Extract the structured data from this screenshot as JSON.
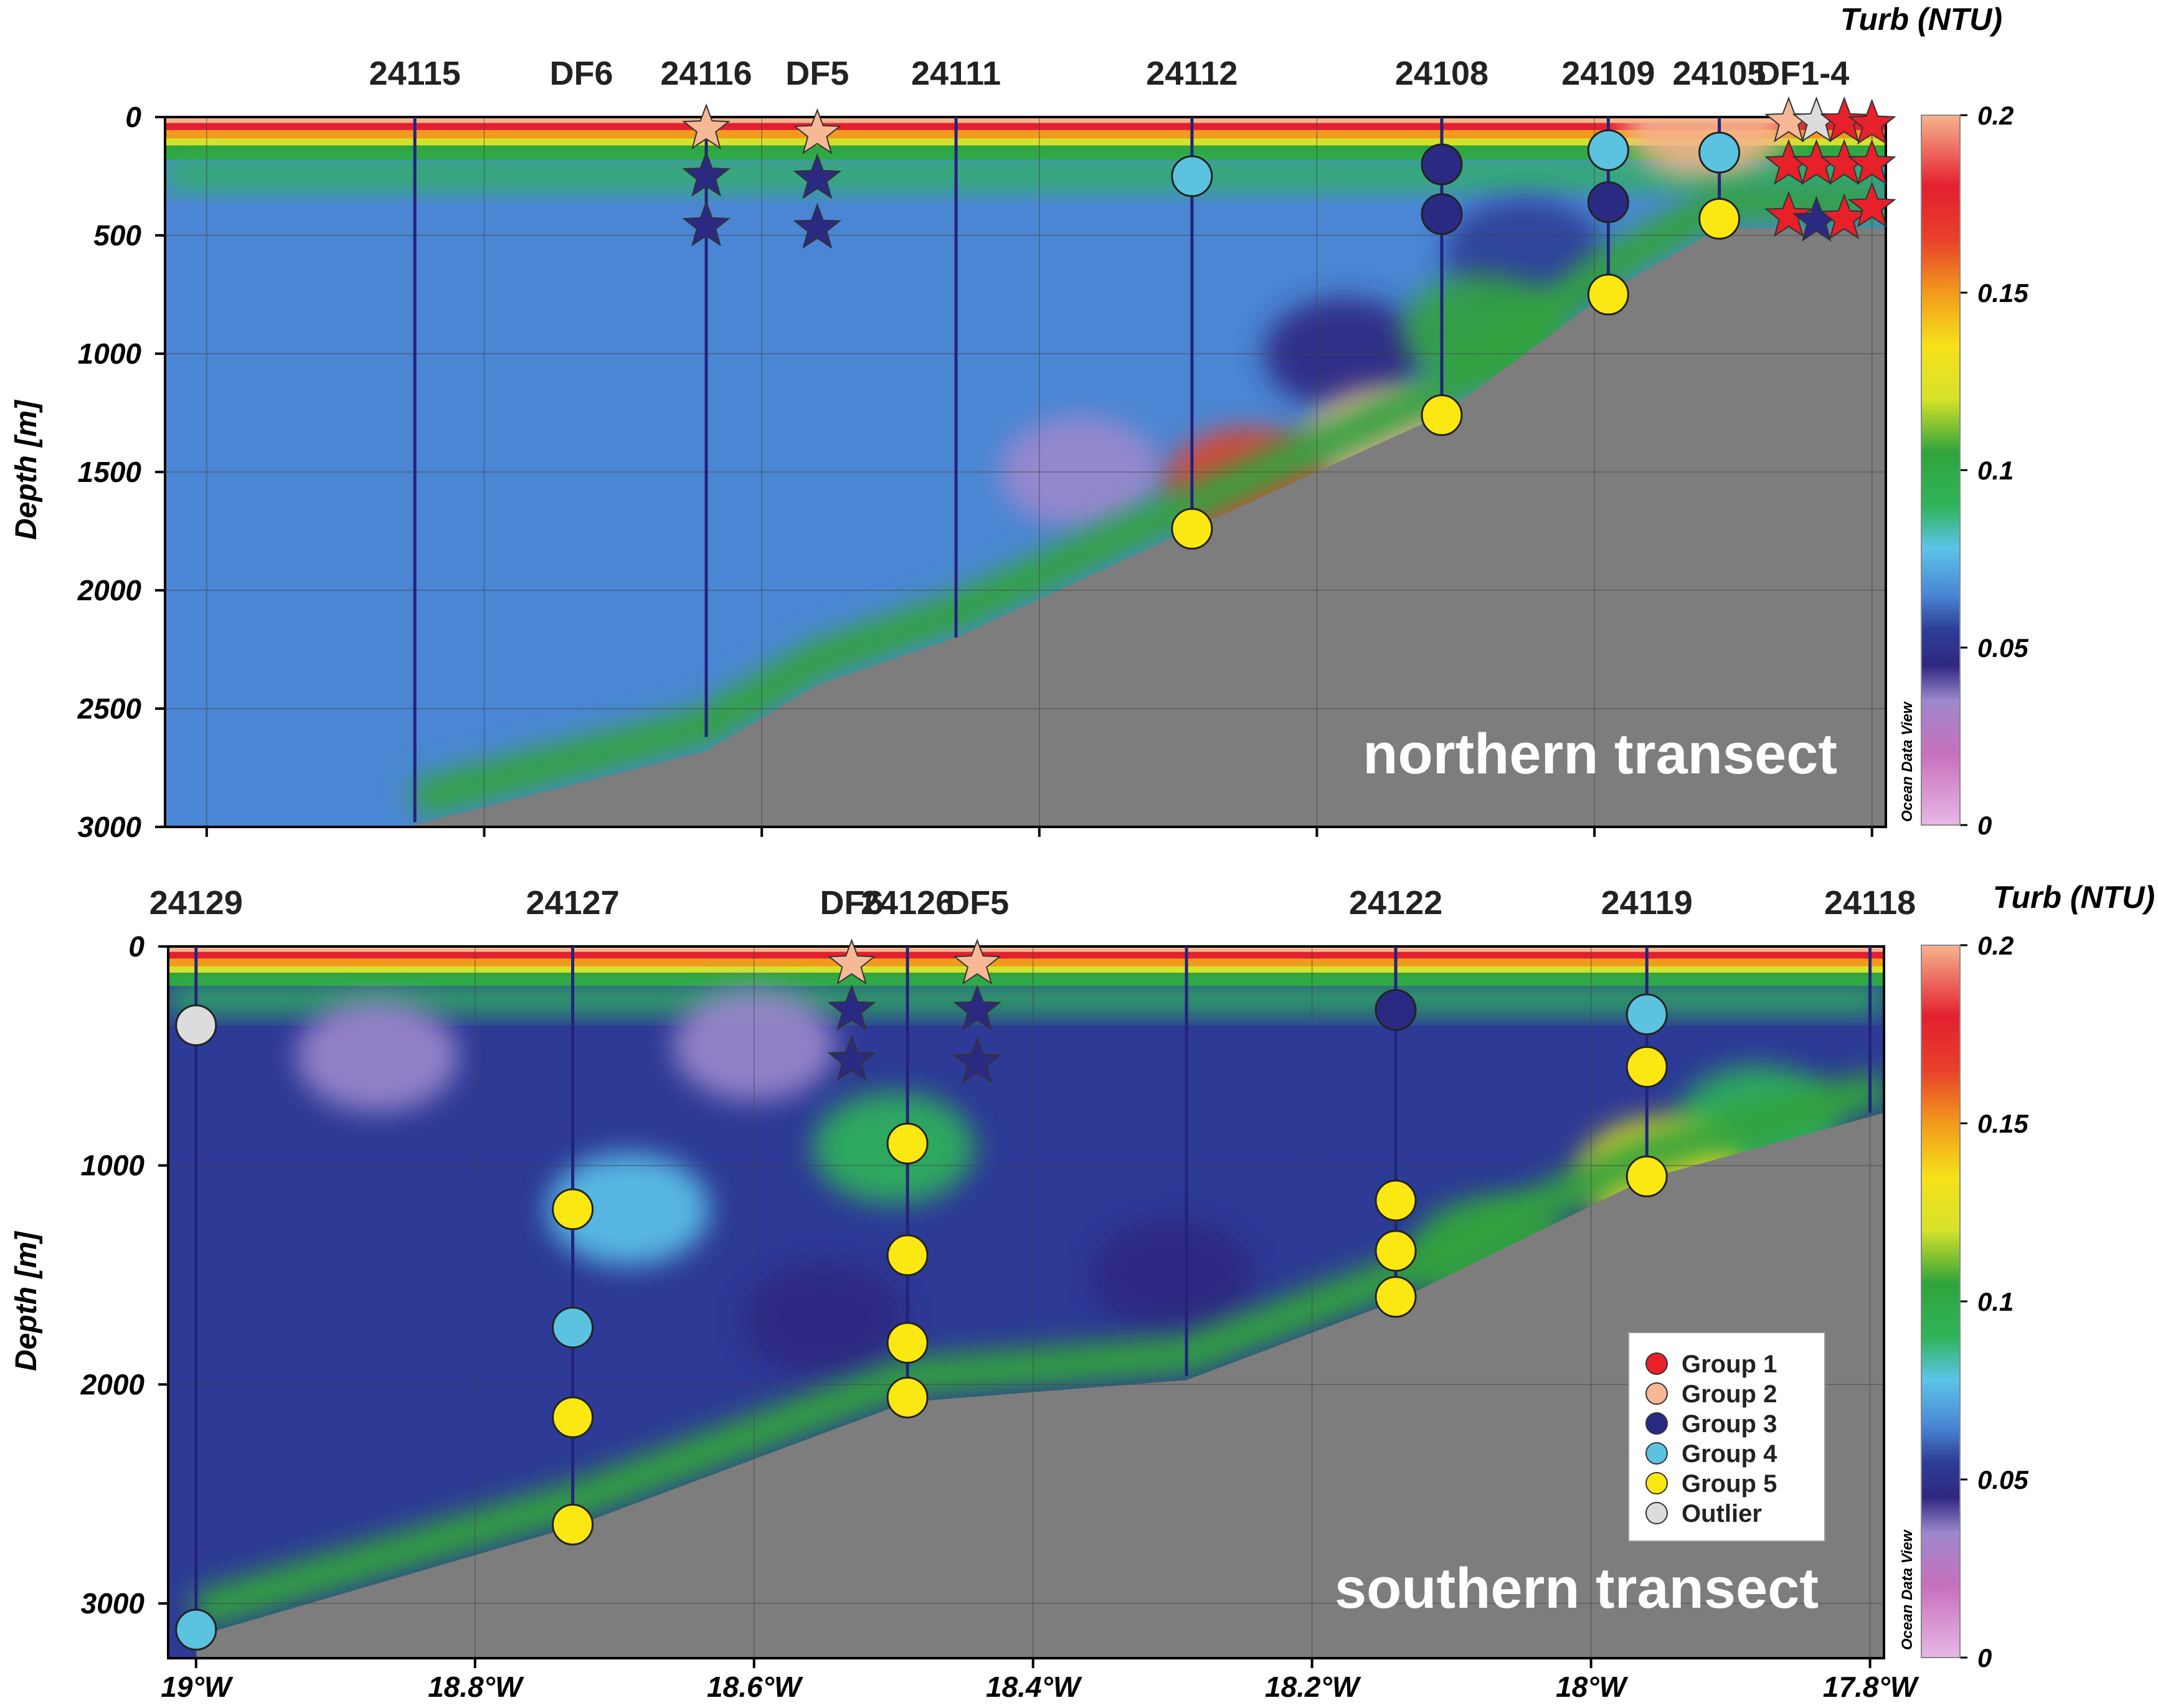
{
  "colors": {
    "seafloor": "#7d7d7d",
    "background_water": "#4a86d4",
    "group_1": "#e8202a",
    "group_2": "#f7b896",
    "group_3": "#2b2a82",
    "group_4": "#5bc3e0",
    "group_5": "#fbe812",
    "outlier": "#dcdcdc",
    "station_line": "#23237a"
  },
  "icons": {
    "circle": "filled-circle-marker",
    "star": "filled-star-marker"
  },
  "colorbar": {
    "title": "Turb (NTU)",
    "ticks": [
      "0.2",
      "0.15",
      "0.1",
      "0.05",
      "0"
    ],
    "range": [
      0,
      0.2
    ],
    "watermark": "Ocean Data View"
  },
  "legend": {
    "items": [
      {
        "label": "Group 1",
        "color": "#e8202a"
      },
      {
        "label": "Group 2",
        "color": "#f7b896"
      },
      {
        "label": "Group 3",
        "color": "#2b2a82"
      },
      {
        "label": "Group 4",
        "color": "#5bc3e0"
      },
      {
        "label": "Group 5",
        "color": "#fbe812"
      },
      {
        "label": "Outlier",
        "color": "#dcdcdc"
      }
    ]
  },
  "chart_data": [
    {
      "type": "heatmap",
      "title": "northern transect",
      "ylabel": "Depth [m]",
      "xlabel": "",
      "xlim": [
        -19.03,
        -17.79
      ],
      "ylim": [
        0,
        3000
      ],
      "y_inverted": true,
      "yticks": [
        "0",
        "500",
        "1000",
        "1500",
        "2000",
        "2500",
        "3000"
      ],
      "xticks_lon": [
        -19.0,
        -18.8,
        -18.6,
        -18.4,
        -18.2,
        -18.0,
        -17.8
      ],
      "xtick_labels": [],
      "grid": true,
      "colorbar_title": "Turb (NTU)",
      "stations": [
        {
          "label": "24115",
          "lon": -18.85,
          "depth_max": 2980
        },
        {
          "label": "DF6",
          "lon": -18.73,
          "depth_max": 0
        },
        {
          "label": "24116",
          "lon": -18.64,
          "depth_max": 2620
        },
        {
          "label": "DF5",
          "lon": -18.56,
          "depth_max": 0
        },
        {
          "label": "24111",
          "lon": -18.46,
          "depth_max": 2200
        },
        {
          "label": "24112",
          "lon": -18.29,
          "depth_max": 1740
        },
        {
          "label": "24108",
          "lon": -18.11,
          "depth_max": 1250
        },
        {
          "label": "24109",
          "lon": -17.99,
          "depth_max": 740
        },
        {
          "label": "24105",
          "lon": -17.91,
          "depth_max": 430
        },
        {
          "label": "DF1-4",
          "lon": -17.85,
          "depth_max": 0
        }
      ],
      "seafloor_lon": [
        -18.85,
        -18.64,
        -18.56,
        -18.46,
        -18.29,
        -18.11,
        -17.99,
        -17.91,
        -17.79
      ],
      "seafloor_depth": [
        2990,
        2680,
        2400,
        2200,
        1740,
        1260,
        740,
        470,
        470
      ],
      "samples": [
        {
          "lon": -18.64,
          "depth": 50,
          "group": "Group 2",
          "marker": "star"
        },
        {
          "lon": -18.64,
          "depth": 250,
          "group": "Group 3",
          "marker": "star"
        },
        {
          "lon": -18.64,
          "depth": 460,
          "group": "Group 3",
          "marker": "star"
        },
        {
          "lon": -18.56,
          "depth": 70,
          "group": "Group 2",
          "marker": "star"
        },
        {
          "lon": -18.56,
          "depth": 260,
          "group": "Group 3",
          "marker": "star"
        },
        {
          "lon": -18.56,
          "depth": 470,
          "group": "Group 3",
          "marker": "star"
        },
        {
          "lon": -18.29,
          "depth": 250,
          "group": "Group 4",
          "marker": "circle"
        },
        {
          "lon": -18.29,
          "depth": 1740,
          "group": "Group 5",
          "marker": "circle"
        },
        {
          "lon": -18.11,
          "depth": 200,
          "group": "Group 3",
          "marker": "circle"
        },
        {
          "lon": -18.11,
          "depth": 410,
          "group": "Group 3",
          "marker": "circle"
        },
        {
          "lon": -18.11,
          "depth": 1260,
          "group": "Group 5",
          "marker": "circle"
        },
        {
          "lon": -17.99,
          "depth": 140,
          "group": "Group 4",
          "marker": "circle"
        },
        {
          "lon": -17.99,
          "depth": 360,
          "group": "Group 3",
          "marker": "circle"
        },
        {
          "lon": -17.99,
          "depth": 750,
          "group": "Group 5",
          "marker": "circle"
        },
        {
          "lon": -17.91,
          "depth": 150,
          "group": "Group 4",
          "marker": "circle"
        },
        {
          "lon": -17.91,
          "depth": 430,
          "group": "Group 5",
          "marker": "circle"
        },
        {
          "lon": -17.86,
          "depth": 20,
          "group": "Group 2",
          "marker": "star"
        },
        {
          "lon": -17.84,
          "depth": 20,
          "group": "Outlier",
          "marker": "star"
        },
        {
          "lon": -17.82,
          "depth": 20,
          "group": "Group 1",
          "marker": "star"
        },
        {
          "lon": -17.8,
          "depth": 30,
          "group": "Group 1",
          "marker": "star"
        },
        {
          "lon": -17.86,
          "depth": 200,
          "group": "Group 1",
          "marker": "star"
        },
        {
          "lon": -17.84,
          "depth": 200,
          "group": "Group 1",
          "marker": "star"
        },
        {
          "lon": -17.82,
          "depth": 200,
          "group": "Group 1",
          "marker": "star"
        },
        {
          "lon": -17.8,
          "depth": 200,
          "group": "Group 1",
          "marker": "star"
        },
        {
          "lon": -17.86,
          "depth": 420,
          "group": "Group 1",
          "marker": "star"
        },
        {
          "lon": -17.84,
          "depth": 440,
          "group": "Group 3",
          "marker": "star"
        },
        {
          "lon": -17.82,
          "depth": 430,
          "group": "Group 1",
          "marker": "star"
        },
        {
          "lon": -17.8,
          "depth": 380,
          "group": "Group 1",
          "marker": "star"
        }
      ],
      "features": [
        {
          "lon": -18.37,
          "depth": 1500,
          "value": 0.035
        },
        {
          "lon": -18.18,
          "depth": 1000,
          "value": 0.045
        },
        {
          "lon": -18.05,
          "depth": 580,
          "value": 0.05
        },
        {
          "lon": -17.92,
          "depth": 25,
          "value": 0.2
        },
        {
          "lon": -18.15,
          "depth": 1380,
          "value": 0.2
        },
        {
          "lon": -18.25,
          "depth": 1550,
          "value": 0.16
        },
        {
          "lon": -18.08,
          "depth": 900,
          "value": 0.1
        }
      ]
    },
    {
      "type": "heatmap",
      "title": "southern transect",
      "ylabel": "Depth [m]",
      "xlabel": "",
      "xlim": [
        -19.02,
        -17.79
      ],
      "ylim": [
        0,
        3250
      ],
      "y_inverted": true,
      "yticks": [
        "0",
        "1000",
        "2000",
        "3000"
      ],
      "xticks_lon": [
        -19.0,
        -18.8,
        -18.6,
        -18.4,
        -18.2,
        -18.0,
        -17.8
      ],
      "xtick_labels": [
        "19°W",
        "18.8°W",
        "18.6°W",
        "18.4°W",
        "18.2°W",
        "18°W",
        "17.8°W"
      ],
      "grid": true,
      "colorbar_title": "Turb (NTU)",
      "stations": [
        {
          "label": "24129",
          "lon": -19.0,
          "depth_max": 3130
        },
        {
          "label": "24127",
          "lon": -18.73,
          "depth_max": 2640
        },
        {
          "label": "DF6",
          "lon": -18.53,
          "depth_max": 0
        },
        {
          "label": "24126",
          "lon": -18.49,
          "depth_max": 2070
        },
        {
          "label": "DF5",
          "lon": -18.44,
          "depth_max": 0
        },
        {
          "label": "",
          "lon": -18.29,
          "depth_max": 1960
        },
        {
          "label": "24122",
          "lon": -18.14,
          "depth_max": 1600
        },
        {
          "label": "24119",
          "lon": -17.96,
          "depth_max": 1040
        },
        {
          "label": "24118",
          "lon": -17.8,
          "depth_max": 760
        }
      ],
      "seafloor_lon": [
        -19.0,
        -18.73,
        -18.49,
        -18.29,
        -18.14,
        -17.96,
        -17.79
      ],
      "seafloor_depth": [
        3150,
        2650,
        2080,
        1980,
        1620,
        1060,
        760
      ],
      "samples": [
        {
          "lon": -19.0,
          "depth": 360,
          "group": "Outlier",
          "marker": "circle"
        },
        {
          "lon": -19.0,
          "depth": 3120,
          "group": "Group 4",
          "marker": "circle"
        },
        {
          "lon": -18.73,
          "depth": 1200,
          "group": "Group 5",
          "marker": "circle"
        },
        {
          "lon": -18.73,
          "depth": 1740,
          "group": "Group 4",
          "marker": "circle"
        },
        {
          "lon": -18.73,
          "depth": 2150,
          "group": "Group 5",
          "marker": "circle"
        },
        {
          "lon": -18.73,
          "depth": 2640,
          "group": "Group 5",
          "marker": "circle"
        },
        {
          "lon": -18.53,
          "depth": 80,
          "group": "Group 2",
          "marker": "star"
        },
        {
          "lon": -18.53,
          "depth": 290,
          "group": "Group 3",
          "marker": "star"
        },
        {
          "lon": -18.53,
          "depth": 520,
          "group": "Group 3",
          "marker": "star"
        },
        {
          "lon": -18.44,
          "depth": 80,
          "group": "Group 2",
          "marker": "star"
        },
        {
          "lon": -18.44,
          "depth": 290,
          "group": "Group 3",
          "marker": "star"
        },
        {
          "lon": -18.44,
          "depth": 530,
          "group": "Group 3",
          "marker": "star"
        },
        {
          "lon": -18.49,
          "depth": 900,
          "group": "Group 5",
          "marker": "circle"
        },
        {
          "lon": -18.49,
          "depth": 1410,
          "group": "Group 5",
          "marker": "circle"
        },
        {
          "lon": -18.49,
          "depth": 1810,
          "group": "Group 5",
          "marker": "circle"
        },
        {
          "lon": -18.49,
          "depth": 2060,
          "group": "Group 5",
          "marker": "circle"
        },
        {
          "lon": -18.14,
          "depth": 290,
          "group": "Group 3",
          "marker": "circle"
        },
        {
          "lon": -18.14,
          "depth": 1160,
          "group": "Group 5",
          "marker": "circle"
        },
        {
          "lon": -18.14,
          "depth": 1390,
          "group": "Group 5",
          "marker": "circle"
        },
        {
          "lon": -18.14,
          "depth": 1600,
          "group": "Group 5",
          "marker": "circle"
        },
        {
          "lon": -17.96,
          "depth": 310,
          "group": "Group 4",
          "marker": "circle"
        },
        {
          "lon": -17.96,
          "depth": 550,
          "group": "Group 5",
          "marker": "circle"
        },
        {
          "lon": -17.96,
          "depth": 1050,
          "group": "Group 5",
          "marker": "circle"
        }
      ],
      "features": [
        {
          "lon": -18.87,
          "depth": 500,
          "value": 0.035
        },
        {
          "lon": -18.6,
          "depth": 450,
          "value": 0.035
        },
        {
          "lon": -18.5,
          "depth": 920,
          "value": 0.08
        },
        {
          "lon": -18.69,
          "depth": 1200,
          "value": 0.075
        },
        {
          "lon": -18.07,
          "depth": 1400,
          "value": 0.1
        },
        {
          "lon": -17.88,
          "depth": 800,
          "value": 0.09
        },
        {
          "lon": -18.55,
          "depth": 1700,
          "value": 0.04
        },
        {
          "lon": -18.3,
          "depth": 1500,
          "value": 0.04
        },
        {
          "lon": -17.95,
          "depth": 1040,
          "value": 0.13
        }
      ]
    }
  ]
}
